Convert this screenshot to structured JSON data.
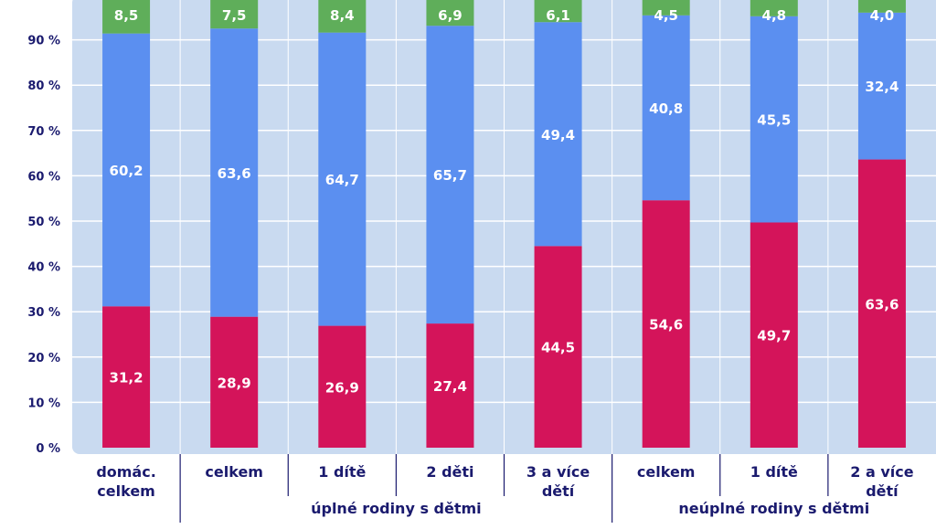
{
  "chart_data": {
    "type": "bar",
    "stacked": true,
    "ylim": [
      0,
      100
    ],
    "y_ticks": [
      "0 %",
      "10 %",
      "20 %",
      "30 %",
      "40 %",
      "50 %",
      "60 %",
      "70 %",
      "80 %",
      "90 %"
    ],
    "y_tick_values": [
      0,
      10,
      20,
      30,
      40,
      50,
      60,
      70,
      80,
      90
    ],
    "grid": true,
    "categories": [
      [
        "domác.",
        "celkem"
      ],
      [
        "celkem"
      ],
      [
        "1 dítě"
      ],
      [
        "2 děti"
      ],
      [
        "3 a více",
        "dětí"
      ],
      [
        "celkem"
      ],
      [
        "1 dítě"
      ],
      [
        "2 a více",
        "dětí"
      ]
    ],
    "groups": [
      {
        "label": "úplné rodiny s dětmi",
        "from": 1,
        "to": 4
      },
      {
        "label": "neúplné rodiny s dětmi",
        "from": 5,
        "to": 7
      }
    ],
    "series": [
      {
        "color": "#d4145a",
        "values": [
          31.2,
          28.9,
          26.9,
          27.4,
          44.5,
          54.6,
          49.7,
          63.6
        ],
        "labels": [
          "31,2",
          "28,9",
          "26,9",
          "27,4",
          "44,5",
          "54,6",
          "49,7",
          "63,6"
        ]
      },
      {
        "color": "#5b8ff0",
        "values": [
          60.2,
          63.6,
          64.7,
          65.7,
          49.4,
          40.8,
          45.5,
          32.4
        ],
        "labels": [
          "60,2",
          "63,6",
          "64,7",
          "65,7",
          "49,4",
          "40,8",
          "45,5",
          "32,4"
        ]
      },
      {
        "color": "#5fae5a",
        "values": [
          8.5,
          7.5,
          8.4,
          6.9,
          6.1,
          4.5,
          4.8,
          4.0
        ],
        "labels": [
          "8,5",
          "7,5",
          "8,4",
          "6,9",
          "6,1",
          "4,5",
          "4,8",
          "4,0"
        ]
      }
    ],
    "colors": {
      "plot_background": "#c9daf0",
      "grid": "#ffffff",
      "axis_text": "#1a1a6e",
      "separator": "#1a1a6e",
      "value_label": "#ffffff"
    }
  }
}
